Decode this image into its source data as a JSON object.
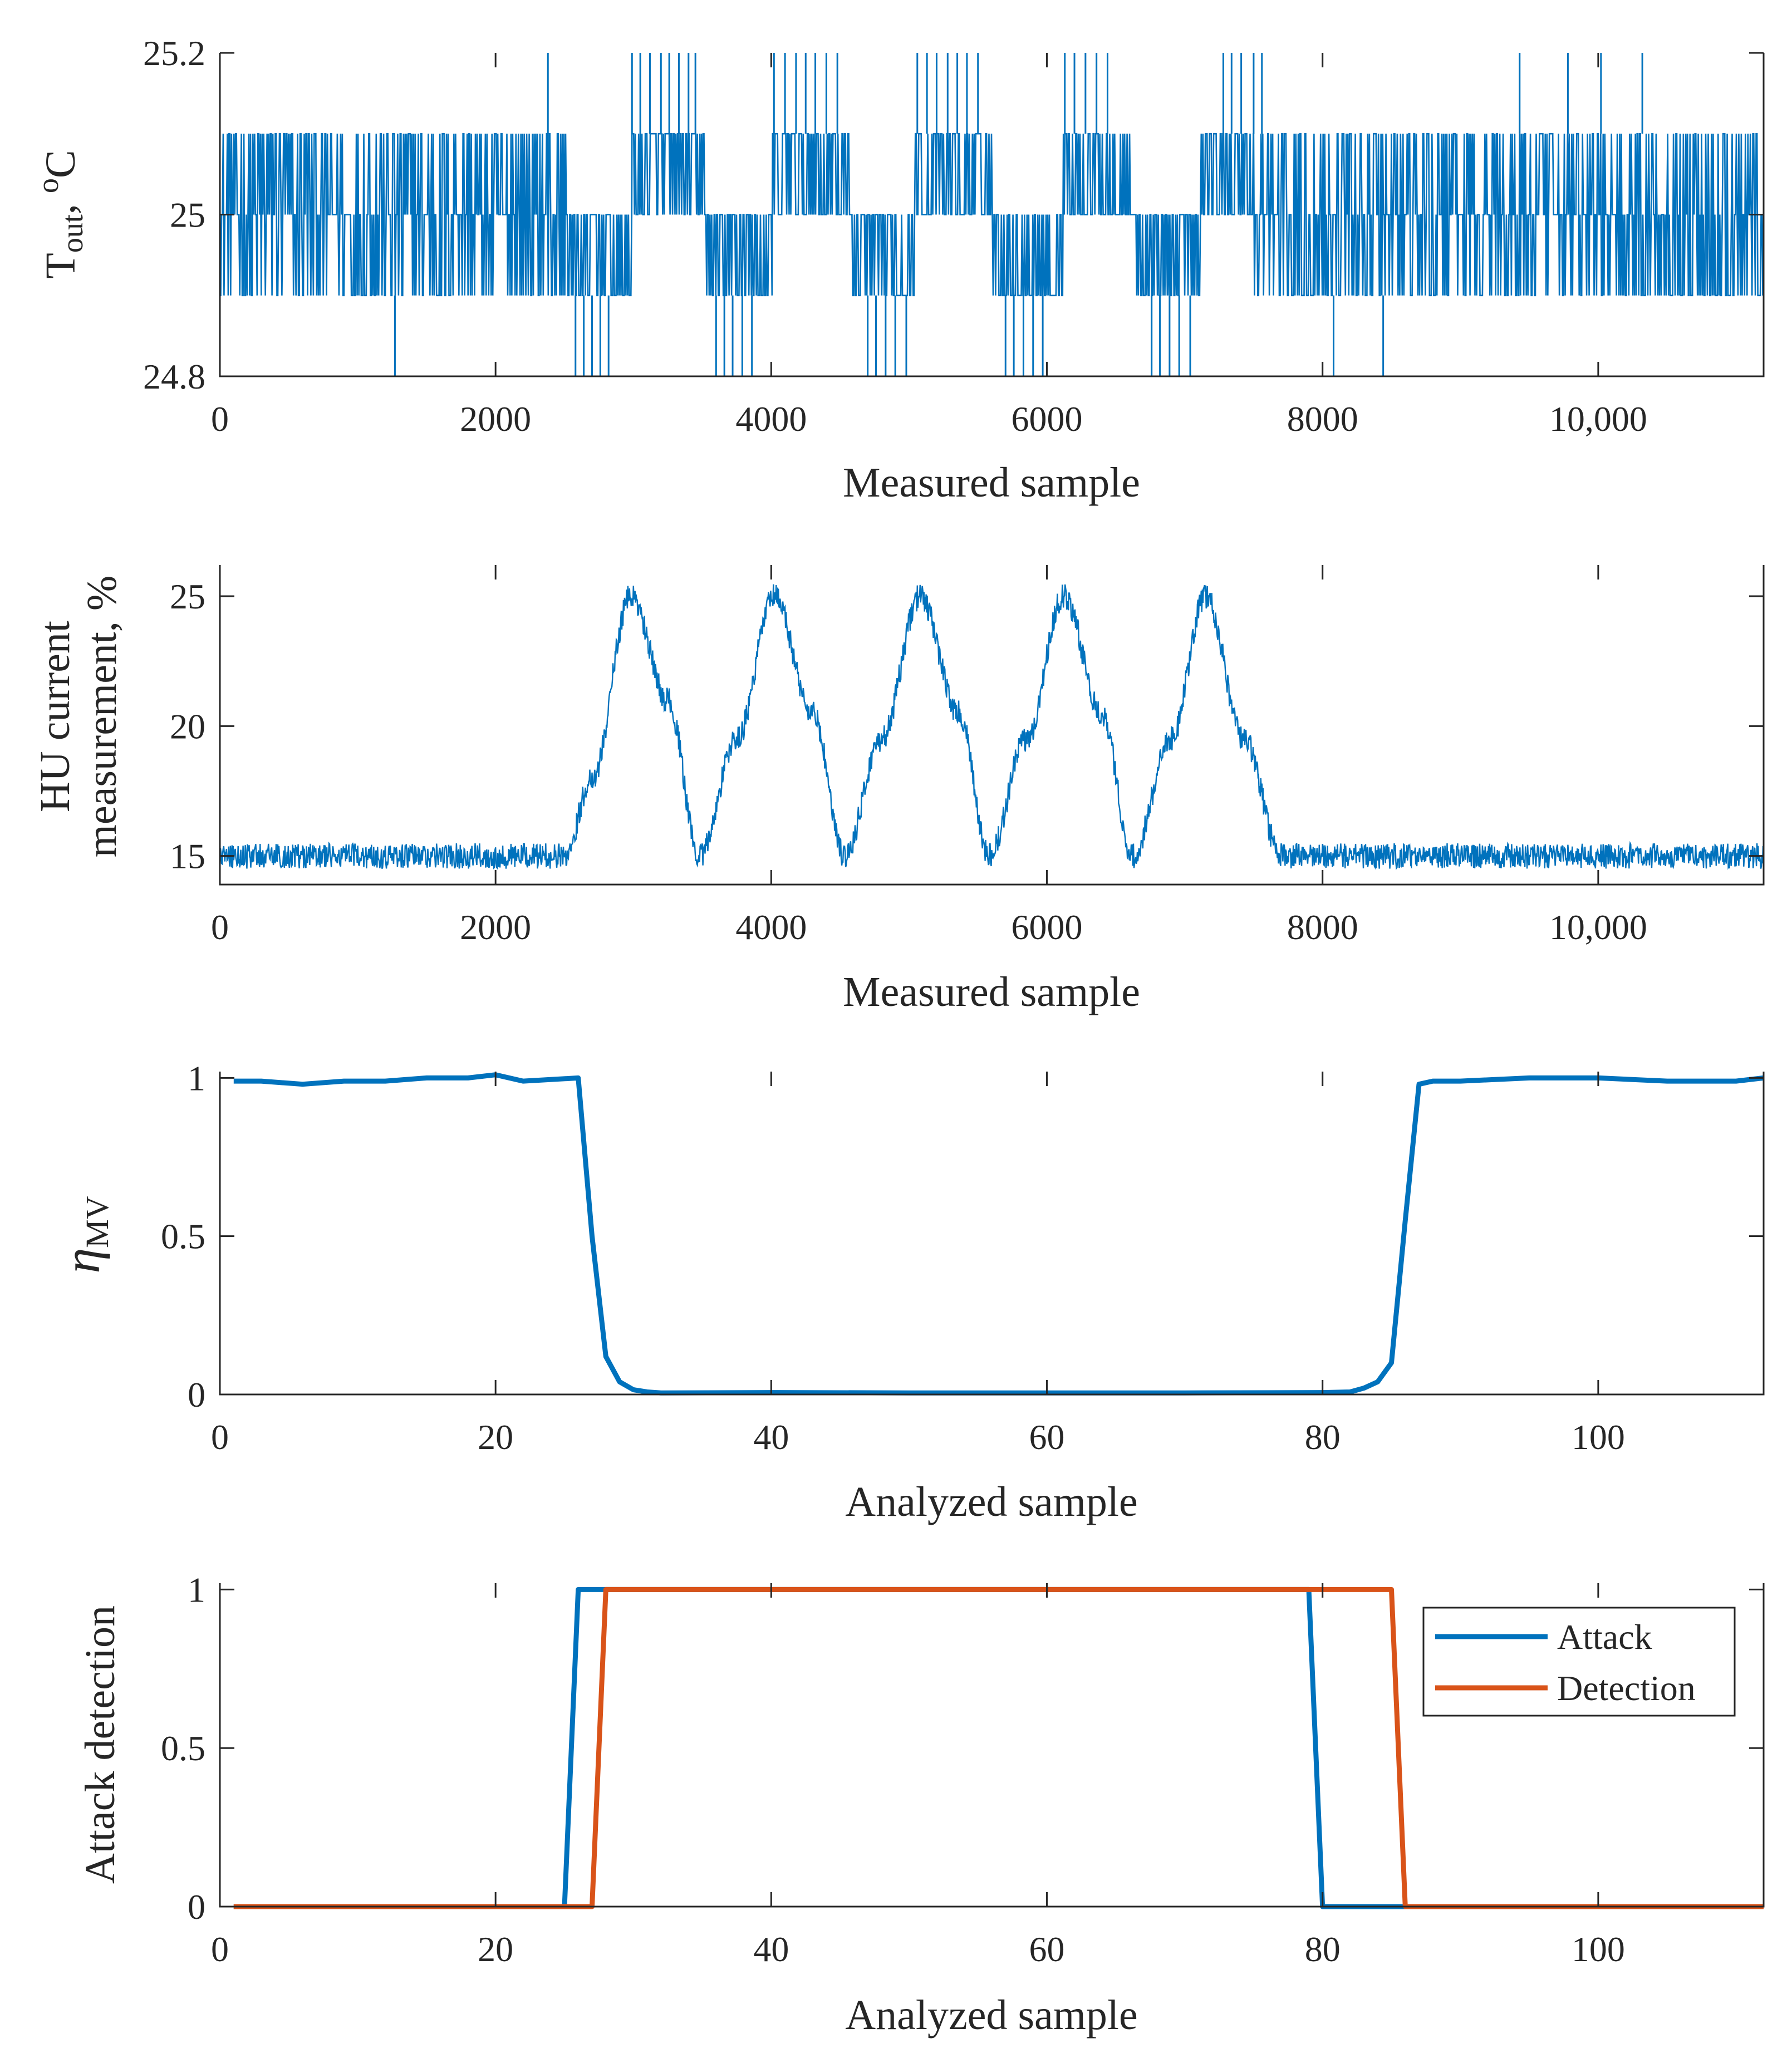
{
  "colors": {
    "blue": "#0072BD",
    "orange": "#D95319",
    "axis": "#262626",
    "background": "#ffffff"
  },
  "chart_data": [
    {
      "type": "line",
      "id": "t-out",
      "xlabel": "Measured sample",
      "ylabel": {
        "main": "T",
        "sub": "out",
        "suffix": ", ",
        "sup": "o",
        "unit": "C"
      },
      "xlim": [
        0,
        11200
      ],
      "ylim": [
        24.8,
        25.2
      ],
      "xticks": [
        0,
        2000,
        4000,
        6000,
        8000,
        10000
      ],
      "xtick_labels": [
        "0",
        "2000",
        "4000",
        "6000",
        "8000",
        "10,000"
      ],
      "yticks": [
        24.8,
        25,
        25.2
      ],
      "ytick_labels": [
        "24.8",
        "25",
        "25.2"
      ],
      "series": [
        {
          "name": "T_out",
          "color": "#0072BD",
          "quantized_levels": [
            24.8,
            24.9,
            25.0,
            25.1,
            25.2
          ],
          "segments": [
            {
              "x": [
                0,
                630
              ],
              "levels": [
                24.9,
                25.0,
                25.1
              ]
            },
            {
              "x": [
                630,
                1530
              ],
              "levels": [
                24.9,
                25.0,
                25.1
              ]
            },
            {
              "x": [
                1530,
                2520
              ],
              "levels": [
                24.9,
                25.0,
                25.1
              ]
            },
            {
              "x": [
                2520,
                2990
              ],
              "levels": [
                24.9,
                25.0
              ]
            },
            {
              "x": [
                2990,
                3520
              ],
              "levels": [
                25.0,
                25.1
              ]
            },
            {
              "x": [
                3520,
                4010
              ],
              "levels": [
                24.9,
                25.0
              ]
            },
            {
              "x": [
                4010,
                4580
              ],
              "levels": [
                25.0,
                25.1
              ]
            },
            {
              "x": [
                4580,
                5040
              ],
              "levels": [
                24.9,
                25.0
              ]
            },
            {
              "x": [
                5040,
                5610
              ],
              "levels": [
                25.0,
                25.1
              ]
            },
            {
              "x": [
                5610,
                6120
              ],
              "levels": [
                24.9,
                25.0
              ]
            },
            {
              "x": [
                6120,
                6640
              ],
              "levels": [
                25.0,
                25.1
              ]
            },
            {
              "x": [
                6640,
                7120
              ],
              "levels": [
                24.9,
                25.0
              ]
            },
            {
              "x": [
                7120,
                7500
              ],
              "levels": [
                25.0,
                25.1
              ]
            },
            {
              "x": [
                7500,
                8500
              ],
              "levels": [
                24.9,
                25.0,
                25.1
              ]
            },
            {
              "x": [
                8500,
                11200
              ],
              "levels": [
                24.9,
                25.0,
                25.1
              ]
            }
          ],
          "spikes_up": [
            2380,
            2990,
            3050,
            3120,
            3200,
            3260,
            3330,
            3400,
            3450,
            4020,
            4100,
            4180,
            4250,
            4320,
            4400,
            4480,
            5060,
            5130,
            5200,
            5280,
            5350,
            5420,
            5500,
            6130,
            6200,
            6280,
            6360,
            6440,
            7280,
            7340,
            7410,
            7500,
            7560,
            9430,
            9780,
            10020,
            10320
          ],
          "spikes_down": [
            1270,
            2580,
            2640,
            2700,
            2760,
            2820,
            3600,
            3660,
            3720,
            3790,
            3860,
            4700,
            4760,
            4830,
            4900,
            4980,
            5700,
            5760,
            5830,
            5900,
            5970,
            6760,
            6820,
            6890,
            6960,
            7040,
            8080,
            8440
          ]
        }
      ]
    },
    {
      "type": "line",
      "id": "hu-current",
      "xlabel": "Measured sample",
      "ylabel": [
        "HU current",
        "measurement, %"
      ],
      "xlim": [
        0,
        11200
      ],
      "ylim": [
        13.9,
        26.2
      ],
      "xticks": [
        0,
        2000,
        4000,
        6000,
        8000,
        10000
      ],
      "xtick_labels": [
        "0",
        "2000",
        "4000",
        "6000",
        "8000",
        "10,000"
      ],
      "yticks": [
        15,
        20,
        25
      ],
      "ytick_labels": [
        "15",
        "20",
        "25"
      ],
      "series": [
        {
          "name": "HU current measurement",
          "color": "#0072BD",
          "baseline": 15.0,
          "noise_band": 0.7,
          "x": [
            0,
            2500,
            2700,
            2980,
            3250,
            3480,
            3750,
            4020,
            4300,
            4530,
            4800,
            5080,
            5360,
            5580,
            5850,
            6120,
            6400,
            6620,
            6900,
            7150,
            7430,
            7700,
            11200
          ],
          "values": [
            15.0,
            15.0,
            18.0,
            25.0,
            21.0,
            15.0,
            19.5,
            25.0,
            20.5,
            15.0,
            19.5,
            25.0,
            20.5,
            15.0,
            19.5,
            25.0,
            20.5,
            15.0,
            19.5,
            25.0,
            19.5,
            15.0,
            15.0
          ]
        }
      ]
    },
    {
      "type": "line",
      "id": "eta-mv",
      "xlabel": "Analyzed sample",
      "ylabel": {
        "main": "η",
        "sub": "MV"
      },
      "xlim": [
        0,
        112
      ],
      "ylim": [
        0,
        1.02
      ],
      "xticks": [
        0,
        20,
        40,
        60,
        80,
        100
      ],
      "xtick_labels": [
        "0",
        "20",
        "40",
        "60",
        "80",
        "100"
      ],
      "yticks": [
        0,
        0.5,
        1
      ],
      "ytick_labels": [
        "0",
        "0.5",
        "1"
      ],
      "series": [
        {
          "name": "eta_MV",
          "color": "#0072BD",
          "x": [
            1,
            3,
            6,
            9,
            12,
            15,
            18,
            20,
            22,
            26,
            27,
            28,
            29,
            30,
            31,
            32,
            40,
            50,
            60,
            70,
            80,
            82,
            83,
            84,
            85,
            86,
            87,
            88,
            90,
            95,
            100,
            105,
            110,
            112
          ],
          "values": [
            0.99,
            0.99,
            0.98,
            0.99,
            0.99,
            1.0,
            1.0,
            1.01,
            0.99,
            1.0,
            0.5,
            0.12,
            0.04,
            0.015,
            0.008,
            0.005,
            0.006,
            0.005,
            0.005,
            0.005,
            0.006,
            0.008,
            0.02,
            0.04,
            0.1,
            0.55,
            0.98,
            0.99,
            0.99,
            1.0,
            1.0,
            0.99,
            0.99,
            1.0
          ]
        }
      ]
    },
    {
      "type": "line",
      "id": "attack-detection",
      "xlabel": "Analyzed sample",
      "ylabel": "Attack detection",
      "xlim": [
        0,
        112
      ],
      "ylim": [
        0,
        1.02
      ],
      "xticks": [
        0,
        20,
        40,
        60,
        80,
        100
      ],
      "xtick_labels": [
        "0",
        "20",
        "40",
        "60",
        "80",
        "100"
      ],
      "yticks": [
        0,
        0.5,
        1
      ],
      "ytick_labels": [
        "0",
        "0.5",
        "1"
      ],
      "legend": {
        "position": "top-right",
        "entries": [
          "Attack",
          "Detection"
        ]
      },
      "series": [
        {
          "name": "Attack",
          "color": "#0072BD",
          "x": [
            1,
            25,
            26,
            79,
            80,
            112
          ],
          "values": [
            0,
            0,
            1,
            1,
            0,
            0
          ]
        },
        {
          "name": "Detection",
          "color": "#D95319",
          "x": [
            1,
            27,
            28,
            85,
            86,
            112
          ],
          "values": [
            0,
            0,
            1,
            1,
            0,
            0
          ]
        }
      ]
    }
  ]
}
